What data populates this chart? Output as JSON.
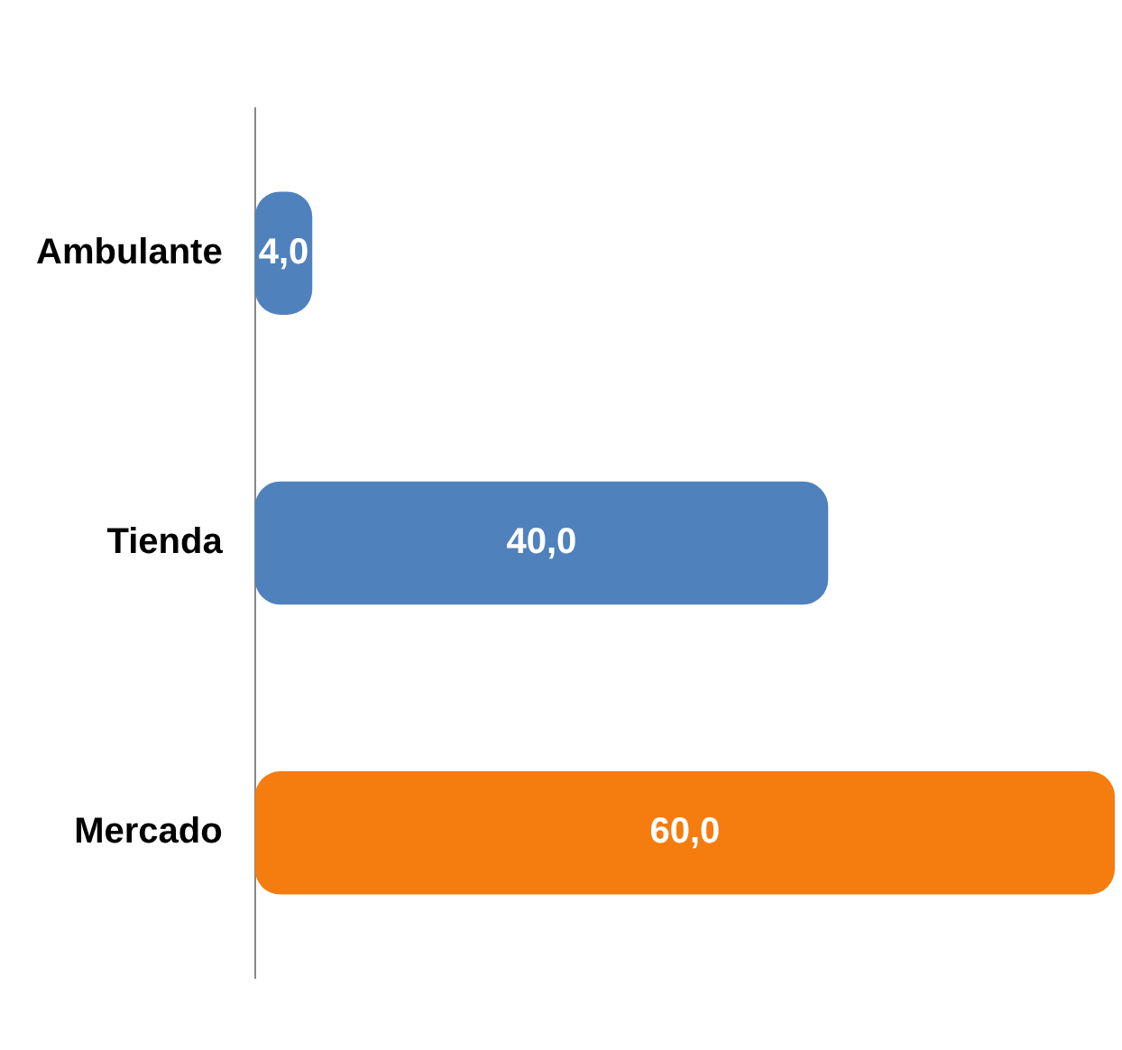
{
  "chart_data": {
    "type": "bar",
    "orientation": "horizontal",
    "categories": [
      "Ambulante",
      "Tienda",
      "Mercado"
    ],
    "values": [
      4.0,
      40.0,
      60.0
    ],
    "colors": [
      "#4f81bd",
      "#4f81bd",
      "#f57c0f"
    ],
    "value_labels": [
      "4,0",
      "40,0",
      "60,0"
    ],
    "grid": false,
    "legend": false
  }
}
